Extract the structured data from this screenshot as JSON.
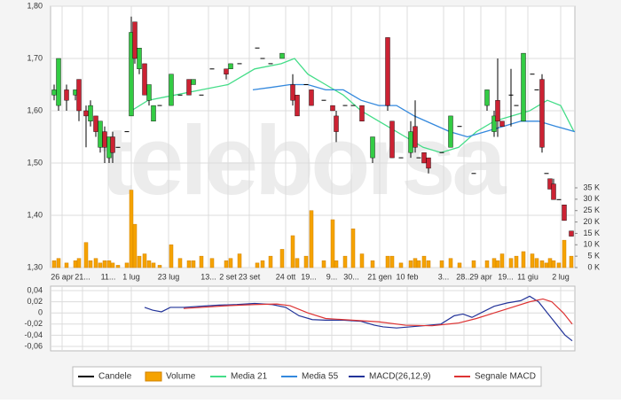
{
  "chart_data": [
    {
      "type": "candlestick",
      "watermark": "teleborsa",
      "xlim": [
        0,
        591
      ],
      "xticks": [
        {
          "value": 13,
          "label": "26 apr"
        },
        {
          "value": 36,
          "label": "21..."
        },
        {
          "value": 65,
          "label": "11..."
        },
        {
          "value": 91,
          "label": "1 lug"
        },
        {
          "value": 133,
          "label": "23 lug"
        },
        {
          "value": 178,
          "label": "13..."
        },
        {
          "value": 200,
          "label": "2 set"
        },
        {
          "value": 224,
          "label": "23 set"
        },
        {
          "value": 265,
          "label": "24 ott"
        },
        {
          "value": 291,
          "label": "19..."
        },
        {
          "value": 317,
          "label": "9..."
        },
        {
          "value": 339,
          "label": "30..."
        },
        {
          "value": 371,
          "label": "21 gen"
        },
        {
          "value": 402,
          "label": "10 feb"
        },
        {
          "value": 443,
          "label": "3..."
        },
        {
          "value": 466,
          "label": "28..."
        },
        {
          "value": 485,
          "label": "29 apr"
        },
        {
          "value": 513,
          "label": "19..."
        },
        {
          "value": 538,
          "label": "11 giu"
        },
        {
          "value": 575,
          "label": "2 lug"
        }
      ],
      "ylim": [
        1.3,
        1.8
      ],
      "yticks": [
        {
          "value": 1.8,
          "label": "1,80"
        },
        {
          "value": 1.7,
          "label": "1,70"
        },
        {
          "value": 1.6,
          "label": "1,60"
        },
        {
          "value": 1.5,
          "label": "1,50"
        },
        {
          "value": 1.4,
          "label": "1,40"
        },
        {
          "value": 1.3,
          "label": "1,30"
        }
      ],
      "y2lim": [
        0,
        114722
      ],
      "y2ticks": [
        {
          "value": 35000,
          "label": "35 K"
        },
        {
          "value": 30000,
          "label": "30 K"
        },
        {
          "value": 25000,
          "label": "25 K"
        },
        {
          "value": 20000,
          "label": "20 K"
        },
        {
          "value": 15000,
          "label": "15 K"
        },
        {
          "value": 10000,
          "label": "10 K"
        },
        {
          "value": 5000,
          "label": "5 K"
        },
        {
          "value": 0,
          "label": "0 K"
        }
      ],
      "grid": true,
      "candles": {
        "name": "Candele",
        "color": "#000000",
        "up_color": "#33cc44",
        "down_color": "#cc2233",
        "x": [
          4,
          9,
          18,
          28,
          32,
          40,
          45,
          51,
          56,
          61,
          66,
          70,
          76,
          86,
          91,
          95,
          100,
          106,
          111,
          116,
          123,
          136,
          146,
          156,
          161,
          170,
          182,
          198,
          203,
          213,
          233,
          239,
          248,
          261,
          273,
          278,
          288,
          294,
          308,
          318,
          322,
          332,
          341,
          351,
          363,
          380,
          385,
          395,
          406,
          411,
          415,
          421,
          426,
          441,
          451,
          461,
          477,
          492,
          500,
          504,
          509,
          519,
          525,
          533,
          543,
          548,
          554,
          559,
          563,
          567,
          573,
          579,
          587
        ],
        "open": [
          1.63,
          1.61,
          1.64,
          1.63,
          1.66,
          1.6,
          1.58,
          1.59,
          1.53,
          1.56,
          1.51,
          1.55,
          1.53,
          1.56,
          1.59,
          1.77,
          1.68,
          1.69,
          1.62,
          1.58,
          1.61,
          1.61,
          1.63,
          1.66,
          1.65,
          1.63,
          1.68,
          1.68,
          1.68,
          1.69,
          1.72,
          1.7,
          1.69,
          1.7,
          1.65,
          1.63,
          1.65,
          1.64,
          1.62,
          1.61,
          1.59,
          1.61,
          1.61,
          1.61,
          1.51,
          1.74,
          1.58,
          1.51,
          1.52,
          1.57,
          1.51,
          1.52,
          1.51,
          1.52,
          1.53,
          1.57,
          1.48,
          1.61,
          1.56,
          1.62,
          1.58,
          1.63,
          1.61,
          1.58,
          1.67,
          1.64,
          1.66,
          1.48,
          1.47,
          1.46,
          1.43,
          1.42,
          1.37
        ],
        "high": [
          1.65,
          1.7,
          1.65,
          1.64,
          1.66,
          1.61,
          1.62,
          1.59,
          1.58,
          1.57,
          1.55,
          1.56,
          1.53,
          1.56,
          1.78,
          1.77,
          1.72,
          1.69,
          1.65,
          1.61,
          1.61,
          1.67,
          1.63,
          1.66,
          1.66,
          1.63,
          1.68,
          1.68,
          1.69,
          1.69,
          1.72,
          1.7,
          1.69,
          1.71,
          1.67,
          1.63,
          1.65,
          1.64,
          1.62,
          1.61,
          1.6,
          1.61,
          1.61,
          1.61,
          1.55,
          1.74,
          1.58,
          1.51,
          1.58,
          1.62,
          1.51,
          1.52,
          1.51,
          1.52,
          1.59,
          1.57,
          1.48,
          1.64,
          1.6,
          1.7,
          1.58,
          1.68,
          1.61,
          1.71,
          1.67,
          1.64,
          1.67,
          1.48,
          1.47,
          1.47,
          1.43,
          1.42,
          1.37
        ],
        "low": [
          1.62,
          1.6,
          1.6,
          1.62,
          1.58,
          1.53,
          1.57,
          1.55,
          1.52,
          1.5,
          1.5,
          1.5,
          1.53,
          1.56,
          1.59,
          1.69,
          1.67,
          1.63,
          1.61,
          1.58,
          1.61,
          1.61,
          1.63,
          1.63,
          1.65,
          1.63,
          1.68,
          1.66,
          1.68,
          1.69,
          1.72,
          1.7,
          1.69,
          1.7,
          1.61,
          1.59,
          1.65,
          1.61,
          1.62,
          1.6,
          1.54,
          1.61,
          1.61,
          1.58,
          1.5,
          1.6,
          1.51,
          1.51,
          1.51,
          1.52,
          1.51,
          1.5,
          1.48,
          1.52,
          1.53,
          1.57,
          1.48,
          1.6,
          1.55,
          1.55,
          1.57,
          1.57,
          1.61,
          1.58,
          1.67,
          1.64,
          1.52,
          1.48,
          1.45,
          1.43,
          1.43,
          1.39,
          1.36
        ],
        "close": [
          1.64,
          1.7,
          1.62,
          1.64,
          1.6,
          1.59,
          1.61,
          1.56,
          1.58,
          1.53,
          1.55,
          1.52,
          1.53,
          1.56,
          1.75,
          1.7,
          1.72,
          1.63,
          1.65,
          1.61,
          1.61,
          1.67,
          1.63,
          1.63,
          1.66,
          1.63,
          1.68,
          1.67,
          1.69,
          1.69,
          1.72,
          1.7,
          1.69,
          1.71,
          1.62,
          1.59,
          1.65,
          1.61,
          1.62,
          1.6,
          1.56,
          1.61,
          1.61,
          1.58,
          1.55,
          1.61,
          1.51,
          1.51,
          1.56,
          1.53,
          1.51,
          1.5,
          1.49,
          1.52,
          1.59,
          1.57,
          1.48,
          1.64,
          1.59,
          1.58,
          1.57,
          1.63,
          1.61,
          1.71,
          1.67,
          1.64,
          1.53,
          1.48,
          1.45,
          1.43,
          1.43,
          1.39,
          1.36
        ]
      },
      "volume": {
        "name": "Volume",
        "color": "#f5a300",
        "axis": "y2",
        "x": [
          4,
          9,
          18,
          28,
          32,
          40,
          45,
          51,
          56,
          61,
          66,
          70,
          76,
          86,
          91,
          95,
          100,
          106,
          111,
          116,
          123,
          136,
          146,
          156,
          161,
          170,
          182,
          198,
          203,
          213,
          233,
          239,
          248,
          261,
          273,
          278,
          288,
          294,
          308,
          318,
          322,
          332,
          341,
          351,
          363,
          380,
          385,
          395,
          406,
          411,
          415,
          421,
          426,
          441,
          451,
          461,
          477,
          492,
          500,
          504,
          509,
          519,
          525,
          533,
          543,
          548,
          554,
          559,
          563,
          567,
          573,
          579,
          587
        ],
        "values": [
          3000,
          4000,
          2000,
          3000,
          4000,
          11000,
          3000,
          4000,
          2000,
          3000,
          3000,
          2000,
          1000,
          2000,
          34000,
          19000,
          5000,
          6000,
          3000,
          2000,
          1000,
          10000,
          4000,
          3000,
          3000,
          5000,
          4000,
          3000,
          4000,
          6000,
          2000,
          3000,
          5000,
          8000,
          14000,
          4000,
          5000,
          25000,
          3000,
          21000,
          3000,
          5000,
          17000,
          6000,
          3000,
          5000,
          5000,
          2000,
          3000,
          4000,
          3000,
          5000,
          3000,
          3000,
          4000,
          2000,
          3000,
          3000,
          4000,
          3000,
          6000,
          4000,
          5000,
          7000,
          6000,
          4000,
          3000,
          2000,
          4000,
          3000,
          2000,
          12000,
          5000
        ]
      },
      "lines": [
        {
          "name": "Media 21",
          "color": "#44dd88",
          "x": [
            91,
            110,
            140,
            170,
            200,
            230,
            260,
            275,
            290,
            310,
            330,
            350,
            370,
            380,
            400,
            420,
            440,
            460,
            480,
            500,
            520,
            540,
            560,
            575,
            590
          ],
          "values": [
            1.6,
            1.62,
            1.63,
            1.64,
            1.65,
            1.68,
            1.69,
            1.7,
            1.67,
            1.65,
            1.63,
            1.6,
            1.58,
            1.57,
            1.55,
            1.53,
            1.52,
            1.53,
            1.56,
            1.58,
            1.59,
            1.6,
            1.62,
            1.61,
            1.56
          ]
        },
        {
          "name": "Media 55",
          "color": "#3388dd",
          "x": [
            228,
            250,
            270,
            290,
            310,
            330,
            350,
            370,
            390,
            410,
            430,
            450,
            470,
            490,
            510,
            530,
            550,
            570,
            591
          ],
          "values": [
            1.64,
            1.645,
            1.65,
            1.65,
            1.64,
            1.64,
            1.62,
            1.61,
            1.61,
            1.59,
            1.575,
            1.56,
            1.55,
            1.56,
            1.57,
            1.58,
            1.58,
            1.57,
            1.56
          ]
        }
      ]
    },
    {
      "type": "line",
      "xlim": [
        0,
        591
      ],
      "ylim": [
        -0.068,
        0.048
      ],
      "yticks": [
        {
          "value": 0.04,
          "label": "0,04"
        },
        {
          "value": 0.02,
          "label": "0,02"
        },
        0,
        {
          "value": -0.02,
          "label": "-0,02"
        },
        {
          "value": -0.04,
          "label": "-0,04"
        },
        {
          "value": -0.06,
          "label": "-0,06"
        }
      ],
      "series": [
        {
          "name": "MACD(26,12,9)",
          "color": "#223399",
          "x": [
            106,
            115,
            125,
            135,
            150,
            170,
            190,
            210,
            230,
            250,
            265,
            280,
            295,
            310,
            330,
            350,
            365,
            375,
            390,
            405,
            420,
            440,
            455,
            465,
            475,
            485,
            500,
            515,
            530,
            540,
            550,
            560,
            570,
            580,
            588
          ],
          "values": [
            0.01,
            0.005,
            0.002,
            0.01,
            0.01,
            0.012,
            0.014,
            0.015,
            0.017,
            0.015,
            0.01,
            -0.005,
            -0.012,
            -0.013,
            -0.013,
            -0.015,
            -0.022,
            -0.025,
            -0.027,
            -0.025,
            -0.023,
            -0.02,
            -0.005,
            -0.002,
            -0.008,
            0.0,
            0.012,
            0.018,
            0.022,
            0.03,
            0.02,
            0.0,
            -0.02,
            -0.04,
            -0.05
          ]
        },
        {
          "name": "Segnale MACD",
          "color": "#dd3333",
          "x": [
            150,
            170,
            200,
            230,
            255,
            270,
            290,
            310,
            340,
            370,
            400,
            430,
            460,
            480,
            500,
            520,
            540,
            555,
            565,
            578,
            588
          ],
          "values": [
            0.008,
            0.01,
            0.013,
            0.015,
            0.016,
            0.013,
            0.0,
            -0.01,
            -0.013,
            -0.016,
            -0.022,
            -0.023,
            -0.018,
            -0.01,
            0.0,
            0.01,
            0.02,
            0.025,
            0.02,
            0.0,
            -0.02
          ]
        }
      ]
    }
  ]
}
